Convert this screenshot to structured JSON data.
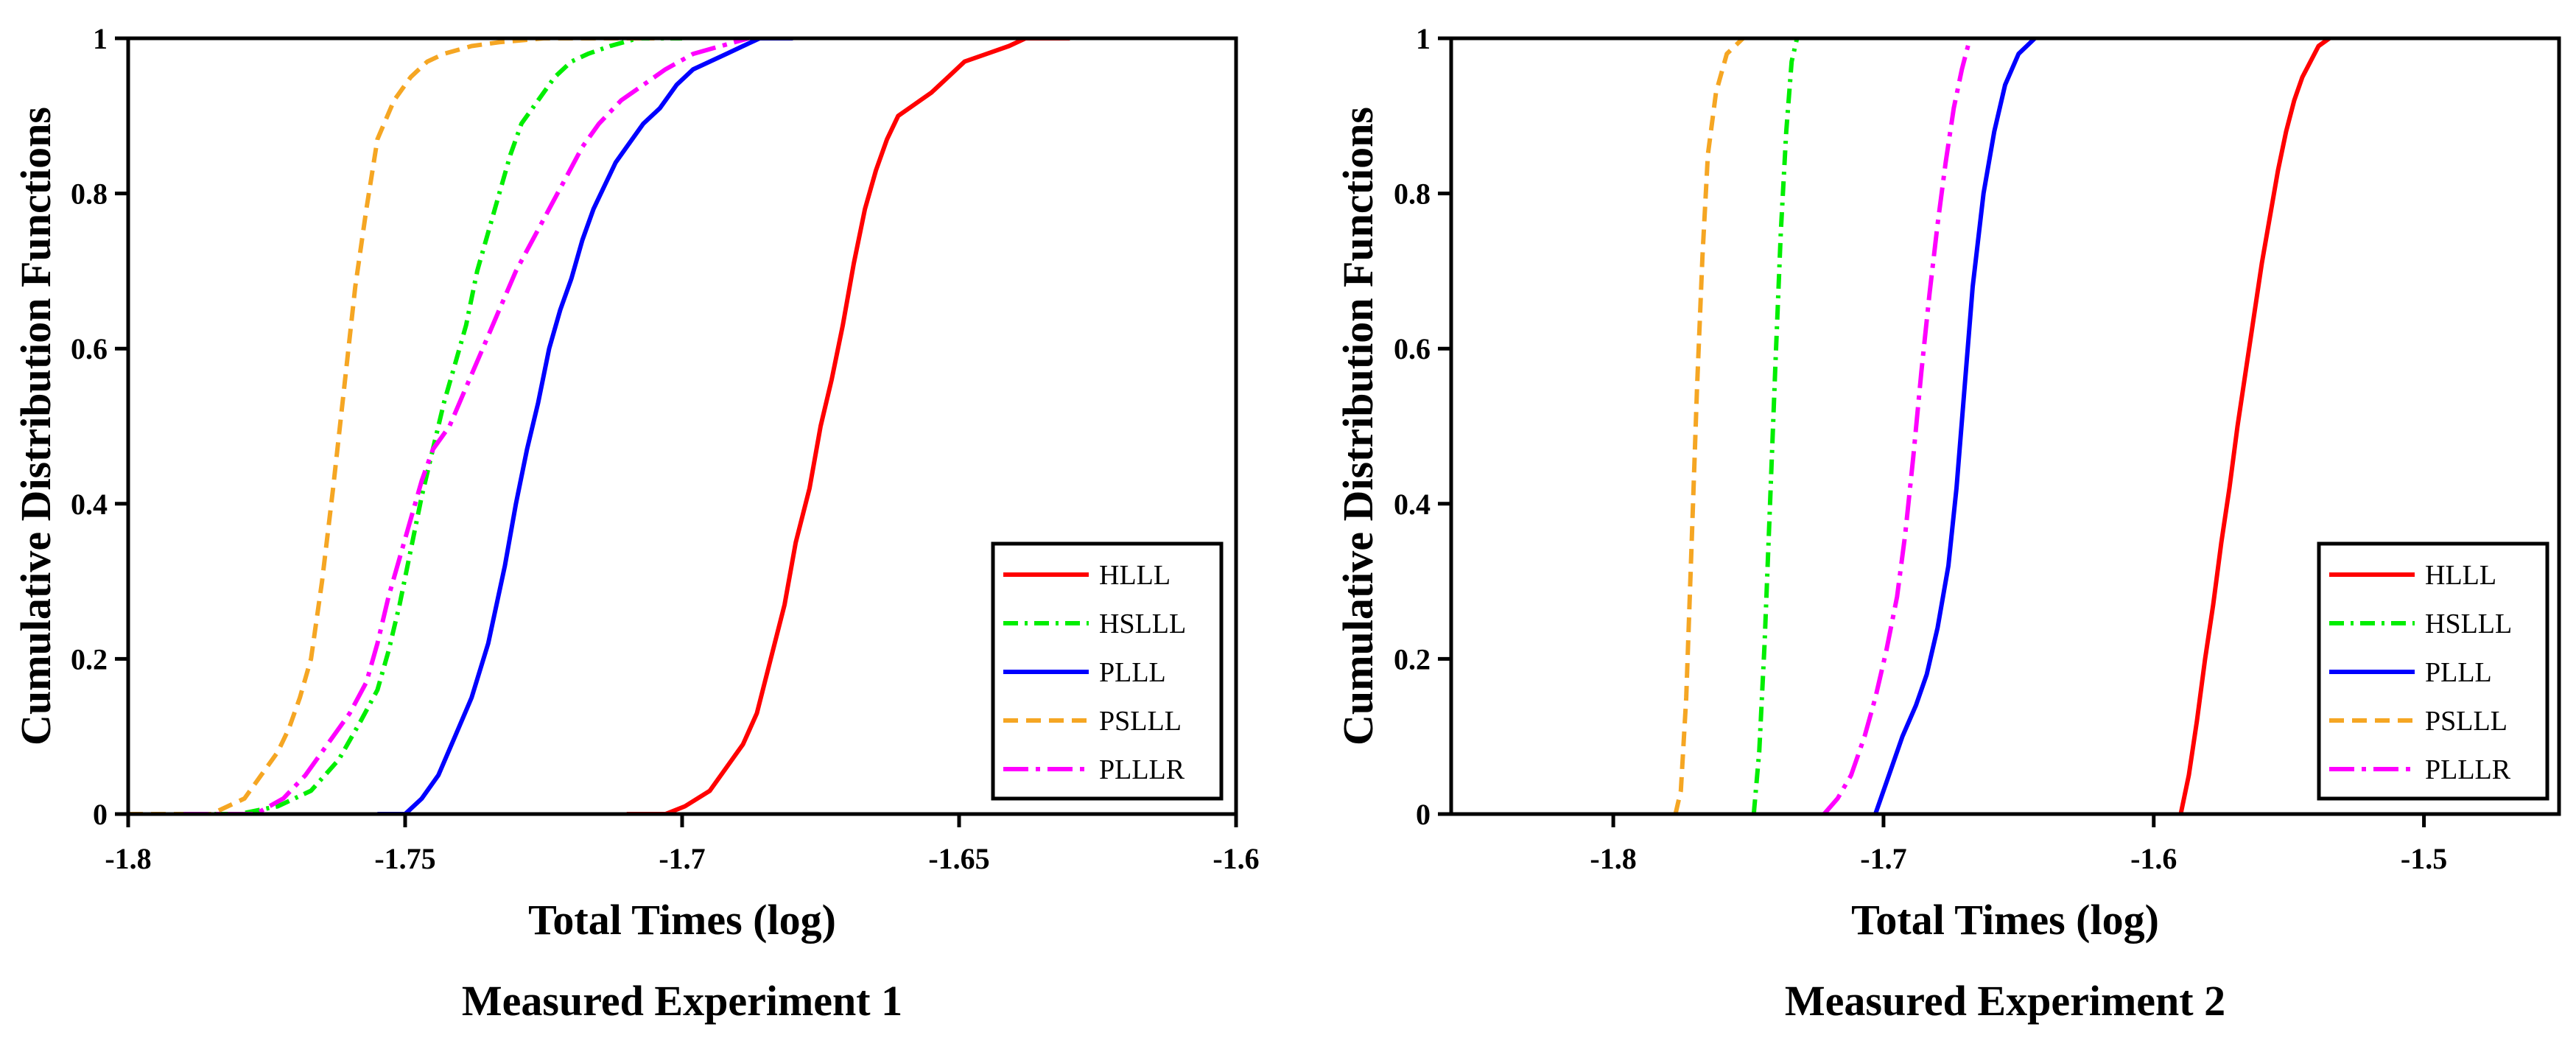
{
  "chart_data": [
    {
      "type": "line",
      "title": "Measured Experiment 1",
      "xlabel": "Total Times (log)",
      "ylabel": "Cumulative Distribution Functions",
      "xlim": [
        -1.8,
        -1.6
      ],
      "ylim": [
        0,
        1
      ],
      "xticks": [
        -1.8,
        -1.75,
        -1.7,
        -1.65,
        -1.6
      ],
      "xtick_labels": [
        "-1.8",
        "-1.75",
        "-1.7",
        "-1.65",
        "-1.6"
      ],
      "yticks": [
        0,
        0.2,
        0.4,
        0.6,
        0.8,
        1
      ],
      "ytick_labels": [
        "0",
        "0.2",
        "0.4",
        "0.6",
        "0.8",
        "1"
      ],
      "legend_position": "bottom-right",
      "series": [
        {
          "name": "HLLL",
          "color": "#ff0000",
          "dash": "solid",
          "x": [
            -1.71,
            -1.703,
            -1.6995,
            -1.695,
            -1.692,
            -1.689,
            -1.6865,
            -1.684,
            -1.6815,
            -1.6795,
            -1.677,
            -1.675,
            -1.673,
            -1.671,
            -1.669,
            -1.667,
            -1.665,
            -1.663,
            -1.661,
            -1.659,
            -1.657,
            -1.655,
            -1.652,
            -1.649,
            -1.645,
            -1.641,
            -1.638,
            -1.63
          ],
          "y": [
            0,
            0,
            0.01,
            0.03,
            0.06,
            0.09,
            0.13,
            0.2,
            0.27,
            0.35,
            0.42,
            0.5,
            0.56,
            0.63,
            0.71,
            0.78,
            0.83,
            0.87,
            0.9,
            0.91,
            0.92,
            0.93,
            0.95,
            0.97,
            0.98,
            0.99,
            1,
            1
          ]
        },
        {
          "name": "HSLLL",
          "color": "#00ee00",
          "dash": "dashdot",
          "x": [
            -1.79,
            -1.78,
            -1.773,
            -1.767,
            -1.762,
            -1.758,
            -1.755,
            -1.753,
            -1.751,
            -1.749,
            -1.747,
            -1.745,
            -1.743,
            -1.741,
            -1.739,
            -1.737,
            -1.735,
            -1.733,
            -1.731,
            -1.729,
            -1.726,
            -1.723,
            -1.72,
            -1.717,
            -1.713,
            -1.708,
            -1.7
          ],
          "y": [
            0,
            0,
            0.01,
            0.03,
            0.07,
            0.12,
            0.16,
            0.21,
            0.27,
            0.34,
            0.41,
            0.47,
            0.53,
            0.58,
            0.63,
            0.7,
            0.75,
            0.8,
            0.85,
            0.89,
            0.92,
            0.95,
            0.97,
            0.98,
            0.99,
            1,
            1
          ]
        },
        {
          "name": "PLLL",
          "color": "#0000ff",
          "dash": "solid",
          "x": [
            -1.755,
            -1.75,
            -1.747,
            -1.744,
            -1.741,
            -1.738,
            -1.735,
            -1.732,
            -1.73,
            -1.728,
            -1.726,
            -1.724,
            -1.722,
            -1.72,
            -1.718,
            -1.716,
            -1.714,
            -1.712,
            -1.71,
            -1.707,
            -1.704,
            -1.701,
            -1.698,
            -1.695,
            -1.692,
            -1.689,
            -1.686,
            -1.68
          ],
          "y": [
            0,
            0,
            0.02,
            0.05,
            0.1,
            0.15,
            0.22,
            0.32,
            0.4,
            0.47,
            0.53,
            0.6,
            0.65,
            0.69,
            0.74,
            0.78,
            0.81,
            0.84,
            0.86,
            0.89,
            0.91,
            0.94,
            0.96,
            0.97,
            0.98,
            0.99,
            1,
            1
          ]
        },
        {
          "name": "PSLLL",
          "color": "#f5a623",
          "dash": "dashed",
          "x": [
            -1.8,
            -1.785,
            -1.779,
            -1.776,
            -1.773,
            -1.771,
            -1.769,
            -1.767,
            -1.765,
            -1.763,
            -1.761,
            -1.759,
            -1.757,
            -1.755,
            -1.752,
            -1.749,
            -1.746,
            -1.743,
            -1.738,
            -1.733,
            -1.725,
            -1.715,
            -1.705
          ],
          "y": [
            0,
            0,
            0.02,
            0.05,
            0.08,
            0.11,
            0.15,
            0.2,
            0.3,
            0.42,
            0.55,
            0.68,
            0.78,
            0.87,
            0.92,
            0.95,
            0.97,
            0.98,
            0.99,
            0.995,
            1,
            1,
            1
          ]
        },
        {
          "name": "PLLLR",
          "color": "#ff00ff",
          "dash": "dashdotlong",
          "x": [
            -1.79,
            -1.777,
            -1.772,
            -1.768,
            -1.764,
            -1.76,
            -1.757,
            -1.755,
            -1.753,
            -1.751,
            -1.749,
            -1.747,
            -1.745,
            -1.742,
            -1.739,
            -1.736,
            -1.733,
            -1.73,
            -1.727,
            -1.724,
            -1.721,
            -1.718,
            -1.715,
            -1.711,
            -1.707,
            -1.703,
            -1.698,
            -1.693,
            -1.688
          ],
          "y": [
            0,
            0,
            0.02,
            0.05,
            0.09,
            0.13,
            0.17,
            0.22,
            0.28,
            0.33,
            0.38,
            0.43,
            0.47,
            0.5,
            0.55,
            0.6,
            0.65,
            0.7,
            0.74,
            0.78,
            0.82,
            0.86,
            0.89,
            0.92,
            0.94,
            0.96,
            0.98,
            0.99,
            1
          ]
        }
      ]
    },
    {
      "type": "line",
      "title": "Measured Experiment 2",
      "xlabel": "Total Times (log)",
      "ylabel": "Cumulative Distribution Functions",
      "xlim": [
        -1.86,
        -1.45
      ],
      "ylim": [
        0,
        1
      ],
      "xticks": [
        -1.8,
        -1.7,
        -1.6,
        -1.5
      ],
      "xtick_labels": [
        "-1.8",
        "-1.7",
        "-1.6",
        "-1.5"
      ],
      "yticks": [
        0,
        0.2,
        0.4,
        0.6,
        0.8,
        1
      ],
      "ytick_labels": [
        "0",
        "0.2",
        "0.4",
        "0.6",
        "0.8",
        "1"
      ],
      "legend_position": "bottom-right",
      "series": [
        {
          "name": "HLLL",
          "color": "#ff0000",
          "dash": "solid",
          "x": [
            -1.59,
            -1.587,
            -1.584,
            -1.581,
            -1.578,
            -1.575,
            -1.572,
            -1.569,
            -1.566,
            -1.563,
            -1.56,
            -1.557,
            -1.554,
            -1.551,
            -1.548,
            -1.545,
            -1.542,
            -1.539,
            -1.535
          ],
          "y": [
            0,
            0.05,
            0.12,
            0.2,
            0.27,
            0.35,
            0.42,
            0.5,
            0.57,
            0.64,
            0.71,
            0.77,
            0.83,
            0.88,
            0.92,
            0.95,
            0.97,
            0.99,
            1
          ]
        },
        {
          "name": "HSLLL",
          "color": "#00ee00",
          "dash": "dashdot",
          "x": [
            -1.748,
            -1.746,
            -1.744,
            -1.742,
            -1.74,
            -1.738,
            -1.736,
            -1.734,
            -1.732
          ],
          "y": [
            0,
            0.08,
            0.22,
            0.4,
            0.58,
            0.75,
            0.88,
            0.97,
            1
          ]
        },
        {
          "name": "PLLL",
          "color": "#0000ff",
          "dash": "solid",
          "x": [
            -1.703,
            -1.698,
            -1.693,
            -1.688,
            -1.684,
            -1.68,
            -1.676,
            -1.673,
            -1.67,
            -1.667,
            -1.663,
            -1.659,
            -1.655,
            -1.65,
            -1.644
          ],
          "y": [
            0,
            0.05,
            0.1,
            0.14,
            0.18,
            0.24,
            0.32,
            0.42,
            0.55,
            0.68,
            0.8,
            0.88,
            0.94,
            0.98,
            1
          ]
        },
        {
          "name": "PSLLL",
          "color": "#f5a623",
          "dash": "dashed",
          "x": [
            -1.777,
            -1.775,
            -1.773,
            -1.771,
            -1.769,
            -1.767,
            -1.765,
            -1.762,
            -1.758,
            -1.752
          ],
          "y": [
            0,
            0.03,
            0.15,
            0.35,
            0.55,
            0.72,
            0.85,
            0.93,
            0.98,
            1
          ]
        },
        {
          "name": "PLLLR",
          "color": "#ff00ff",
          "dash": "dashdotlong",
          "x": [
            -1.722,
            -1.717,
            -1.712,
            -1.707,
            -1.703,
            -1.699,
            -1.695,
            -1.692,
            -1.689,
            -1.686,
            -1.683,
            -1.68,
            -1.677,
            -1.674,
            -1.671,
            -1.668
          ],
          "y": [
            0,
            0.02,
            0.05,
            0.1,
            0.15,
            0.21,
            0.28,
            0.36,
            0.46,
            0.57,
            0.67,
            0.76,
            0.84,
            0.91,
            0.96,
            1
          ]
        }
      ]
    }
  ]
}
